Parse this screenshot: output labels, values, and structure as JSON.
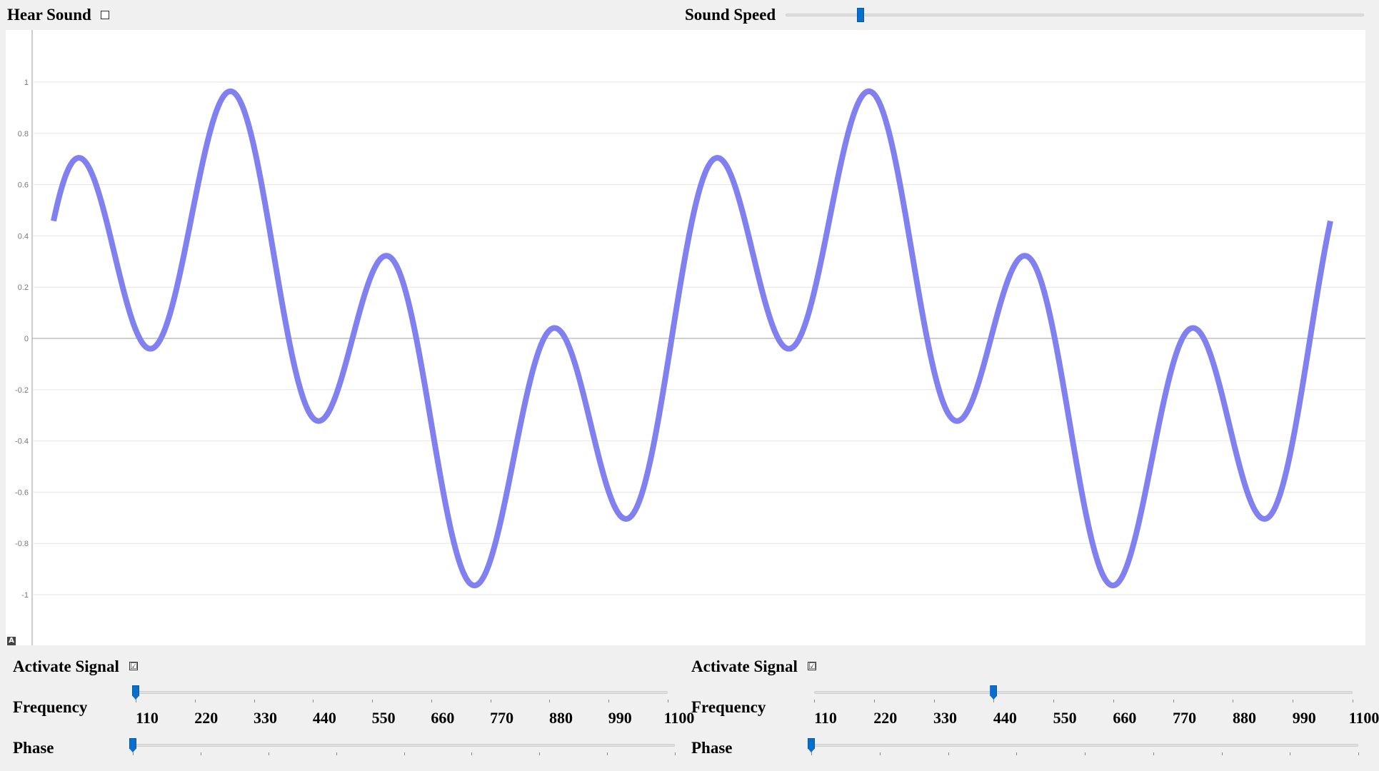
{
  "header": {
    "hear_sound_label": "Hear Sound",
    "hear_sound_checked": false,
    "sound_speed_label": "Sound Speed",
    "sound_speed_level": 0.13
  },
  "chart_data": {
    "type": "line",
    "y_ticks": [
      "1",
      "0.8",
      "0.6",
      "0.4",
      "0.2",
      "0",
      "-0.2",
      "-0.4",
      "-0.6",
      "-0.8",
      "-1"
    ],
    "ylim": [
      -1.2,
      1.2
    ],
    "xlim": [
      0,
      1
    ],
    "grid": true,
    "line_color": "#8080f0",
    "series": [
      {
        "formula": "(sin(2*pi*1*x*2) + sin(2*pi*4*x*2)) / 2",
        "components": [
          {
            "frequency": 110,
            "phase": 0
          },
          {
            "frequency": 440,
            "phase": 0
          }
        ]
      }
    ]
  },
  "signals": [
    {
      "activate_label": "Activate Signal",
      "activate_checked": true,
      "frequency_label": "Frequency",
      "frequency_value": 110,
      "frequency_ticks": [
        "110",
        "220",
        "330",
        "440",
        "550",
        "660",
        "770",
        "880",
        "990",
        "1100"
      ],
      "phase_label": "Phase",
      "phase_value": 0
    },
    {
      "activate_label": "Activate Signal",
      "activate_checked": true,
      "frequency_label": "Frequency",
      "frequency_value": 440,
      "frequency_ticks": [
        "110",
        "220",
        "330",
        "440",
        "550",
        "660",
        "770",
        "880",
        "990",
        "1100"
      ],
      "phase_label": "Phase",
      "phase_value": 0
    }
  ],
  "icons": {
    "corner": "chart-a-icon",
    "checked_glyph": "☑",
    "unchecked_glyph": ""
  }
}
